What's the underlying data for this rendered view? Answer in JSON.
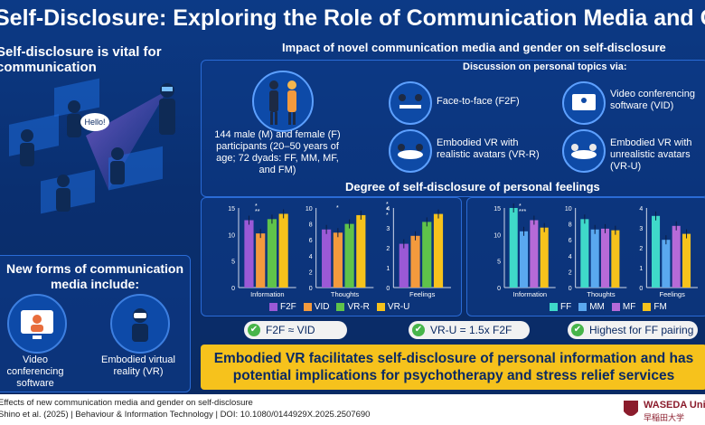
{
  "title": "Self-Disclosure: Exploring the Role of Communication Media and Gender in Cyberspace",
  "left": {
    "heading": "Self-disclosure is vital for communication",
    "bubble": "Hello!",
    "media_heading": "New forms of communication media include:",
    "media": [
      {
        "label": "Video conferencing software",
        "icon": "video-call-icon"
      },
      {
        "label": "Embodied virtual reality (VR)",
        "icon": "vr-headset-icon"
      }
    ]
  },
  "impact": {
    "heading": "Impact of novel communication media and gender on self-disclosure",
    "subheading": "Discussion on personal topics via:",
    "participants": "144 male (M) and female (F) participants (20–50 years of age; 72 dyads: FF, MM, MF, and FM)",
    "modes": [
      {
        "label": "Face-to-face (F2F)",
        "icon": "face-to-face-icon"
      },
      {
        "label": "Video conferencing software (VID)",
        "icon": "video-conference-icon"
      },
      {
        "label": "Embodied VR with realistic avatars (VR-R)",
        "icon": "realistic-avatar-icon"
      },
      {
        "label": "Embodied VR with unrealistic avatars (VR-U)",
        "icon": "unrealistic-avatar-icon"
      }
    ]
  },
  "degree_heading": "Degree of self-disclosure of personal feelings",
  "chart_data": [
    {
      "type": "bar",
      "categories": [
        "Information",
        "Thoughts",
        "Feelings"
      ],
      "series": [
        {
          "name": "F2F",
          "color": "#9b59d6",
          "values": [
            12.7,
            7.3,
            2.2
          ]
        },
        {
          "name": "VID",
          "color": "#f39a3d",
          "values": [
            10.2,
            6.9,
            2.6
          ]
        },
        {
          "name": "VR-R",
          "color": "#5fc34a",
          "values": [
            12.9,
            8.0,
            3.3
          ]
        },
        {
          "name": "VR-U",
          "color": "#f6c21c",
          "values": [
            13.9,
            9.1,
            3.7
          ]
        }
      ],
      "ylims": [
        [
          0,
          15
        ],
        [
          0,
          10
        ],
        [
          0,
          4
        ]
      ],
      "yticks": [
        [
          "0",
          "5",
          "10",
          "15"
        ],
        [
          "0",
          "2",
          "4",
          "6",
          "8",
          "10"
        ],
        [
          "0",
          "1",
          "2",
          "3",
          "4"
        ]
      ],
      "significance": [
        "*",
        "**",
        "*",
        "*",
        "*",
        "*"
      ]
    },
    {
      "type": "bar",
      "categories": [
        "Information",
        "Thoughts",
        "Feelings"
      ],
      "series": [
        {
          "name": "FF",
          "color": "#3fd9c9",
          "values": [
            15.0,
            8.6,
            3.6
          ]
        },
        {
          "name": "MM",
          "color": "#5aa8ef",
          "values": [
            10.6,
            7.3,
            2.4
          ]
        },
        {
          "name": "MF",
          "color": "#b66ad8",
          "values": [
            12.7,
            7.4,
            3.1
          ]
        },
        {
          "name": "FM",
          "color": "#f6c21c",
          "values": [
            11.3,
            7.2,
            2.7
          ]
        }
      ],
      "ylims": [
        [
          0,
          15
        ],
        [
          0,
          10
        ],
        [
          0,
          4
        ]
      ],
      "yticks": [
        [
          "0",
          "5",
          "10",
          "15"
        ],
        [
          "0",
          "2",
          "4",
          "6",
          "8",
          "10"
        ],
        [
          "0",
          "1",
          "2",
          "3",
          "4"
        ]
      ],
      "significance": [
        "*",
        "***"
      ]
    }
  ],
  "findings": [
    "F2F ≈ VID",
    "VR-U = 1.5x F2F",
    "Highest for FF pairing"
  ],
  "conclusion": [
    "Embodied VR facilitates self-disclosure of personal information and has",
    "potential implications for psychotherapy and stress relief services"
  ],
  "footer": {
    "line1": "Effects of new communication media and gender on self-disclosure",
    "line2": "Shino et al. (2025) | Behaviour & Information Technology | DOI: 10.1080/0144929X.2025.2507690",
    "org": "WASEDA University",
    "org_jp": "早稲田大学"
  }
}
